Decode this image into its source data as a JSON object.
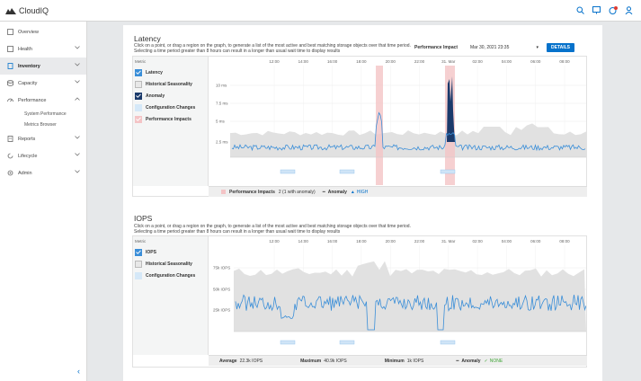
{
  "app": {
    "title": "CloudIQ"
  },
  "header_icons": [
    "search-icon",
    "monitor-icon",
    "notification-icon",
    "user-icon"
  ],
  "sidebar": {
    "items": [
      {
        "label": "Overview",
        "icon": "home-icon"
      },
      {
        "label": "Health",
        "icon": "heart-icon"
      },
      {
        "label": "Inventory",
        "icon": "server-icon"
      },
      {
        "label": "Capacity",
        "icon": "database-icon"
      },
      {
        "label": "Performance",
        "icon": "gauge-icon"
      },
      {
        "label": "Reports",
        "icon": "document-icon"
      },
      {
        "label": "Lifecycle",
        "icon": "refresh-icon"
      },
      {
        "label": "Admin",
        "icon": "gear-icon"
      }
    ],
    "sub": [
      "System Performance",
      "Metrics Browser"
    ]
  },
  "colors": {
    "accent": "#0672cb",
    "series": "#3a8ed8",
    "impact": "#f4c4c6",
    "anomaly": "#1b3a6b",
    "band": "#e1e1e1",
    "green": "#3fa535"
  },
  "latency": {
    "title": "Latency",
    "desc1": "Click on a point, or drag a region on the graph, to generate a list of the most active and best matching storage objects over that time",
    "desc2": "period. Selecting a time period greater than 8 hours can result in a longer than usual wait time to display results",
    "impact_label": "Performance Impact",
    "impact_value": "Mar 30, 2021 23:35",
    "details": "DETAILS",
    "metric_label": "Metric",
    "metrics": [
      "Latency",
      "Historical Seasonality",
      "Anomaly",
      "Configuration Changes",
      "Performance Impacts"
    ],
    "x_ticks": [
      "12:00",
      "14:00",
      "16:00",
      "18:00",
      "20:00",
      "22:00",
      "31. Mar",
      "02:00",
      "04:00",
      "06:00",
      "08:00"
    ],
    "y_ticks": [
      "10 ms",
      "7.5 ms",
      "5 ms",
      "2.5 ms"
    ],
    "legend": {
      "impacts": "Performance Impacts",
      "impacts_count": "2 (1 with anomaly)",
      "anomaly": "Anomaly",
      "anomaly_level": "HIGH"
    }
  },
  "iops": {
    "title": "IOPS",
    "desc1": "Click on a point, or drag a region on the graph, to generate a list of the most active and best matching storage objects over that time period.",
    "desc2": "Selecting a time period greater than 8 hours can result in a longer than usual wait time to display results",
    "metric_label": "Metric",
    "metrics": [
      "IOPS",
      "Historical Seasonality",
      "Configuration Changes"
    ],
    "x_ticks": [
      "12:00",
      "14:00",
      "16:00",
      "18:00",
      "20:00",
      "22:00",
      "31. Mar",
      "02:00",
      "04:00",
      "06:00",
      "08:00"
    ],
    "y_ticks": [
      "75k IOPS",
      "50k IOPS",
      "25k IOPS"
    ],
    "stats": {
      "avg_label": "Average",
      "avg": "22.3k IOPS",
      "max_label": "Maximum",
      "max": "40.9k IOPS",
      "min_label": "Minimum",
      "min": "1k IOPS",
      "anomaly": "Anomaly",
      "anomaly_level": "NONE"
    }
  }
}
